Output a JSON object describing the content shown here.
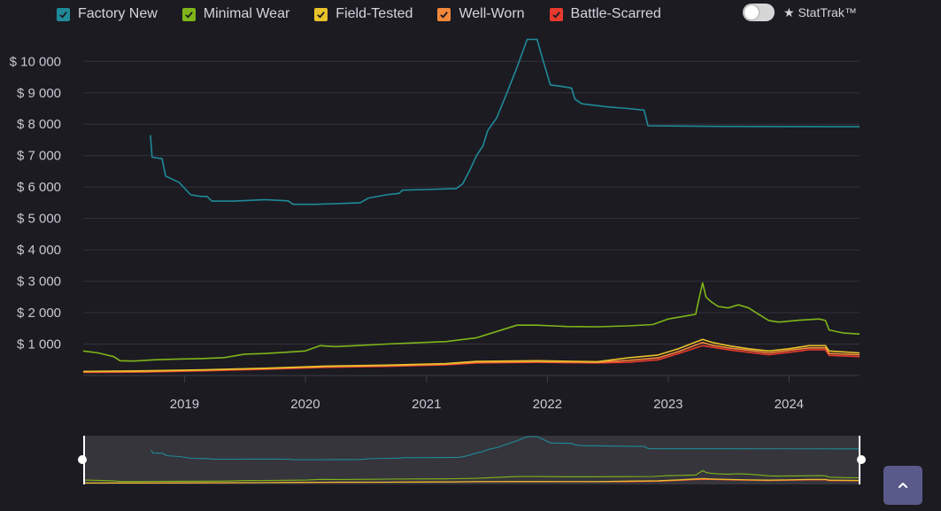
{
  "legend": {
    "items": [
      {
        "label": "Factory New",
        "color": "#1f8a98"
      },
      {
        "label": "Minimal Wear",
        "color": "#7fb519"
      },
      {
        "label": "Field-Tested",
        "color": "#e8c22a"
      },
      {
        "label": "Well-Worn",
        "color": "#f2883a"
      },
      {
        "label": "Battle-Scarred",
        "color": "#e8392e"
      }
    ],
    "check_icon": "checkmark-icon"
  },
  "stattrak": {
    "label": "★ StatTrak™",
    "enabled": false
  },
  "scroll_top": {
    "icon": "chevron-up-icon"
  },
  "chart_data": {
    "type": "line",
    "title": "",
    "xlabel": "",
    "ylabel": "",
    "x_axis": "date",
    "x_range": [
      "2018-03-01",
      "2024-08-01"
    ],
    "x_ticks": [
      "2019",
      "2020",
      "2021",
      "2022",
      "2023",
      "2024"
    ],
    "ylim": [
      0,
      10600
    ],
    "y_ticks": [
      1000,
      2000,
      3000,
      4000,
      5000,
      6000,
      7000,
      8000,
      9000,
      10000
    ],
    "y_tick_labels": [
      "$ 1 000",
      "$ 2 000",
      "$ 3 000",
      "$ 4 000",
      "$ 5 000",
      "$ 6 000",
      "$ 7 000",
      "$ 8 000",
      "$ 9 000",
      "$ 10 000"
    ],
    "grid": true,
    "legend_position": "top-left",
    "navigator": true,
    "series": [
      {
        "name": "Factory New",
        "color": "#1f8a98",
        "points": [
          [
            "2018-09-20",
            7650
          ],
          [
            "2018-09-25",
            6950
          ],
          [
            "2018-10-25",
            6900
          ],
          [
            "2018-11-05",
            6350
          ],
          [
            "2018-12-15",
            6150
          ],
          [
            "2019-01-20",
            5750
          ],
          [
            "2019-02-20",
            5700
          ],
          [
            "2019-03-10",
            5700
          ],
          [
            "2019-03-25",
            5550
          ],
          [
            "2019-06-01",
            5550
          ],
          [
            "2019-09-01",
            5600
          ],
          [
            "2019-11-10",
            5560
          ],
          [
            "2019-11-25",
            5450
          ],
          [
            "2020-02-01",
            5450
          ],
          [
            "2020-05-01",
            5480
          ],
          [
            "2020-06-15",
            5500
          ],
          [
            "2020-07-10",
            5650
          ],
          [
            "2020-09-01",
            5750
          ],
          [
            "2020-10-10",
            5800
          ],
          [
            "2020-10-20",
            5900
          ],
          [
            "2021-01-01",
            5920
          ],
          [
            "2021-04-01",
            5950
          ],
          [
            "2021-04-20",
            6100
          ],
          [
            "2021-05-10",
            6500
          ],
          [
            "2021-06-01",
            7000
          ],
          [
            "2021-06-20",
            7300
          ],
          [
            "2021-07-05",
            7800
          ],
          [
            "2021-08-01",
            8200
          ],
          [
            "2021-09-01",
            9000
          ],
          [
            "2021-10-01",
            9800
          ],
          [
            "2021-11-01",
            10700
          ],
          [
            "2021-12-01",
            10700
          ],
          [
            "2021-12-20",
            10000
          ],
          [
            "2022-01-10",
            9250
          ],
          [
            "2022-02-15",
            9200
          ],
          [
            "2022-03-15",
            9150
          ],
          [
            "2022-03-25",
            8800
          ],
          [
            "2022-04-15",
            8650
          ],
          [
            "2022-07-01",
            8550
          ],
          [
            "2022-09-01",
            8500
          ],
          [
            "2022-10-20",
            8450
          ],
          [
            "2022-11-01",
            7950
          ],
          [
            "2023-06-01",
            7930
          ],
          [
            "2024-08-01",
            7920
          ]
        ]
      },
      {
        "name": "Minimal Wear",
        "color": "#7fb519",
        "points": [
          [
            "2018-03-01",
            780
          ],
          [
            "2018-04-15",
            720
          ],
          [
            "2018-06-01",
            600
          ],
          [
            "2018-06-20",
            470
          ],
          [
            "2018-08-01",
            460
          ],
          [
            "2018-10-01",
            500
          ],
          [
            "2018-12-01",
            520
          ],
          [
            "2019-03-01",
            540
          ],
          [
            "2019-05-01",
            570
          ],
          [
            "2019-07-01",
            680
          ],
          [
            "2019-09-01",
            700
          ],
          [
            "2019-11-01",
            740
          ],
          [
            "2020-01-01",
            780
          ],
          [
            "2020-02-15",
            950
          ],
          [
            "2020-04-01",
            920
          ],
          [
            "2020-06-01",
            950
          ],
          [
            "2020-09-01",
            1000
          ],
          [
            "2020-12-01",
            1040
          ],
          [
            "2021-03-01",
            1080
          ],
          [
            "2021-06-01",
            1200
          ],
          [
            "2021-08-01",
            1400
          ],
          [
            "2021-10-01",
            1600
          ],
          [
            "2021-12-01",
            1600
          ],
          [
            "2022-03-01",
            1560
          ],
          [
            "2022-06-01",
            1550
          ],
          [
            "2022-09-01",
            1580
          ],
          [
            "2022-11-15",
            1620
          ],
          [
            "2023-01-01",
            1800
          ],
          [
            "2023-02-15",
            1880
          ],
          [
            "2023-03-25",
            1950
          ],
          [
            "2023-04-01",
            2300
          ],
          [
            "2023-04-15",
            2950
          ],
          [
            "2023-04-25",
            2500
          ],
          [
            "2023-05-10",
            2350
          ],
          [
            "2023-06-01",
            2200
          ],
          [
            "2023-07-01",
            2150
          ],
          [
            "2023-08-01",
            2250
          ],
          [
            "2023-09-01",
            2150
          ],
          [
            "2023-10-01",
            1950
          ],
          [
            "2023-11-01",
            1750
          ],
          [
            "2023-12-01",
            1700
          ],
          [
            "2024-02-01",
            1760
          ],
          [
            "2024-04-01",
            1800
          ],
          [
            "2024-04-20",
            1750
          ],
          [
            "2024-05-01",
            1450
          ],
          [
            "2024-06-15",
            1350
          ],
          [
            "2024-08-01",
            1320
          ]
        ]
      },
      {
        "name": "Field-Tested",
        "color": "#e8c22a",
        "points": [
          [
            "2018-03-01",
            130
          ],
          [
            "2018-09-01",
            150
          ],
          [
            "2019-03-01",
            180
          ],
          [
            "2019-09-01",
            230
          ],
          [
            "2020-03-01",
            300
          ],
          [
            "2020-09-01",
            330
          ],
          [
            "2021-03-01",
            380
          ],
          [
            "2021-06-01",
            450
          ],
          [
            "2021-12-01",
            470
          ],
          [
            "2022-06-01",
            440
          ],
          [
            "2022-09-01",
            560
          ],
          [
            "2022-12-01",
            650
          ],
          [
            "2023-02-01",
            850
          ],
          [
            "2023-04-15",
            1150
          ],
          [
            "2023-05-15",
            1050
          ],
          [
            "2023-07-01",
            950
          ],
          [
            "2023-09-01",
            850
          ],
          [
            "2023-11-01",
            780
          ],
          [
            "2024-01-01",
            850
          ],
          [
            "2024-03-01",
            950
          ],
          [
            "2024-04-20",
            950
          ],
          [
            "2024-05-01",
            780
          ],
          [
            "2024-08-01",
            720
          ]
        ]
      },
      {
        "name": "Well-Worn",
        "color": "#f2883a",
        "points": [
          [
            "2018-03-01",
            120
          ],
          [
            "2018-09-01",
            130
          ],
          [
            "2019-03-01",
            170
          ],
          [
            "2019-09-01",
            220
          ],
          [
            "2020-03-01",
            280
          ],
          [
            "2020-09-01",
            310
          ],
          [
            "2021-03-01",
            360
          ],
          [
            "2021-06-01",
            420
          ],
          [
            "2021-12-01",
            440
          ],
          [
            "2022-06-01",
            420
          ],
          [
            "2022-09-01",
            480
          ],
          [
            "2022-12-01",
            560
          ],
          [
            "2023-02-01",
            760
          ],
          [
            "2023-04-15",
            1050
          ],
          [
            "2023-05-15",
            960
          ],
          [
            "2023-07-01",
            880
          ],
          [
            "2023-09-01",
            800
          ],
          [
            "2023-11-01",
            720
          ],
          [
            "2024-01-01",
            800
          ],
          [
            "2024-03-01",
            880
          ],
          [
            "2024-04-20",
            880
          ],
          [
            "2024-05-01",
            700
          ],
          [
            "2024-08-01",
            660
          ]
        ]
      },
      {
        "name": "Battle-Scarred",
        "color": "#e8392e",
        "points": [
          [
            "2018-03-01",
            100
          ],
          [
            "2018-09-01",
            110
          ],
          [
            "2019-03-01",
            150
          ],
          [
            "2019-09-01",
            200
          ],
          [
            "2020-03-01",
            260
          ],
          [
            "2020-09-01",
            290
          ],
          [
            "2021-03-01",
            340
          ],
          [
            "2021-06-01",
            400
          ],
          [
            "2021-12-01",
            420
          ],
          [
            "2022-06-01",
            400
          ],
          [
            "2022-09-01",
            420
          ],
          [
            "2022-12-01",
            500
          ],
          [
            "2023-02-01",
            700
          ],
          [
            "2023-04-15",
            950
          ],
          [
            "2023-05-15",
            900
          ],
          [
            "2023-07-01",
            820
          ],
          [
            "2023-09-01",
            740
          ],
          [
            "2023-11-01",
            660
          ],
          [
            "2024-01-01",
            740
          ],
          [
            "2024-03-01",
            820
          ],
          [
            "2024-04-20",
            820
          ],
          [
            "2024-05-01",
            640
          ],
          [
            "2024-08-01",
            600
          ]
        ]
      }
    ]
  }
}
